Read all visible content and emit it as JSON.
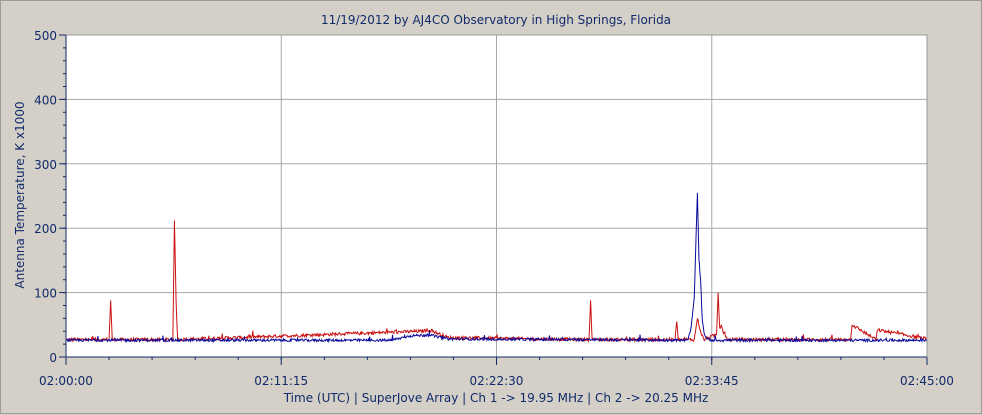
{
  "chart_data": {
    "type": "line",
    "title": "11/19/2012  by  AJ4CO Observatory  in  High Springs, Florida",
    "xlabel": "Time (UTC)  |  SuperJove Array  |  Ch 1 -> 19.95 MHz  |  Ch 2 -> 20.25 MHz",
    "ylabel": "Antenna Temperature, K x1000",
    "xlim": [
      "02:00:00",
      "02:45:00"
    ],
    "ylim": [
      0,
      500
    ],
    "x_ticks": [
      "02:00:00",
      "02:11:15",
      "02:22:30",
      "02:33:45",
      "02:45:00"
    ],
    "y_ticks": [
      0,
      100,
      200,
      300,
      400,
      500
    ],
    "grid": true,
    "series": [
      {
        "color": "#cc1010",
        "baseline": 27,
        "x": [
          "02:00:00",
          "02:02:15",
          "02:02:20",
          "02:02:25",
          "02:04:30",
          "02:05:35",
          "02:05:40",
          "02:05:45",
          "02:05:50",
          "02:18:30",
          "02:19:00",
          "02:20:00",
          "02:27:20",
          "02:27:25",
          "02:27:30",
          "02:31:50",
          "02:31:55",
          "02:32:00",
          "02:32:50",
          "02:33:00",
          "02:33:10",
          "02:33:20",
          "02:34:00",
          "02:34:05",
          "02:34:10",
          "02:34:15",
          "02:34:20",
          "02:34:30",
          "02:34:40",
          "02:35:00",
          "02:41:00",
          "02:41:05",
          "02:42:20",
          "02:42:25",
          "02:45:00"
        ],
        "y": [
          27,
          27,
          88,
          27,
          27,
          27,
          212,
          90,
          27,
          40,
          42,
          30,
          27,
          88,
          27,
          27,
          55,
          27,
          27,
          60,
          40,
          27,
          35,
          100,
          45,
          50,
          40,
          30,
          27,
          27,
          27,
          50,
          27,
          42,
          28
        ]
      },
      {
        "color": "#0a0a9a",
        "baseline": 26,
        "x": [
          "02:00:00",
          "02:17:00",
          "02:18:00",
          "02:19:00",
          "02:20:00",
          "02:32:30",
          "02:32:40",
          "02:32:50",
          "02:33:00",
          "02:33:05",
          "02:33:10",
          "02:33:15",
          "02:33:20",
          "02:33:25",
          "02:33:30",
          "02:33:40",
          "02:33:50",
          "02:45:00"
        ],
        "y": [
          26,
          26,
          33,
          34,
          28,
          26,
          45,
          90,
          255,
          150,
          120,
          60,
          40,
          32,
          28,
          26,
          26,
          26
        ]
      }
    ]
  }
}
